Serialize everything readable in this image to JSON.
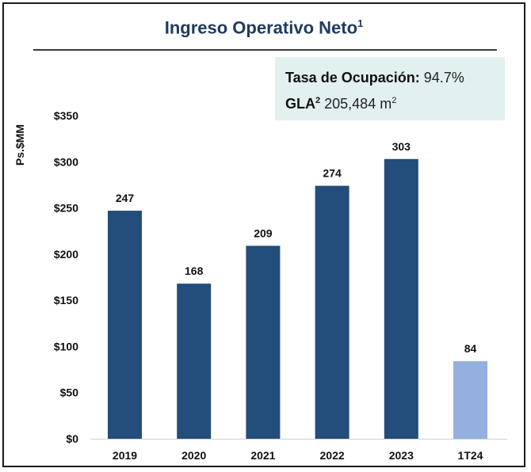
{
  "title": {
    "text": "Ingreso Operativo Neto",
    "superscript": "1"
  },
  "info": {
    "occupancy_label": "Tasa de Ocupación:",
    "occupancy_value": "94.7%",
    "gla_label": "GLA",
    "gla_superscript": "2",
    "gla_value": "205,484 m",
    "gla_unit_superscript": "2"
  },
  "colors": {
    "bar": "#234d7a",
    "bar_highlight": "#94b0de",
    "title": "#1f3a5f",
    "info_bg": "#e2f0f0"
  },
  "chart_data": {
    "type": "bar",
    "title": "Ingreso Operativo Neto",
    "ylabel": "Ps.$MM",
    "xlabel": "",
    "categories": [
      "2019",
      "2020",
      "2021",
      "2022",
      "2023",
      "1T24"
    ],
    "values": [
      247,
      168,
      209,
      274,
      303,
      84
    ],
    "data_labels": [
      "247",
      "168",
      "209",
      "274",
      "303",
      "84"
    ],
    "highlighted": [
      false,
      false,
      false,
      false,
      false,
      true
    ],
    "ylim": [
      0,
      350
    ],
    "yticks": [
      0,
      50,
      100,
      150,
      200,
      250,
      300,
      350
    ],
    "ytick_labels": [
      "$0",
      "$50",
      "$100",
      "$150",
      "$200",
      "$250",
      "$300",
      "$350"
    ],
    "grid": false,
    "legend": "none"
  }
}
